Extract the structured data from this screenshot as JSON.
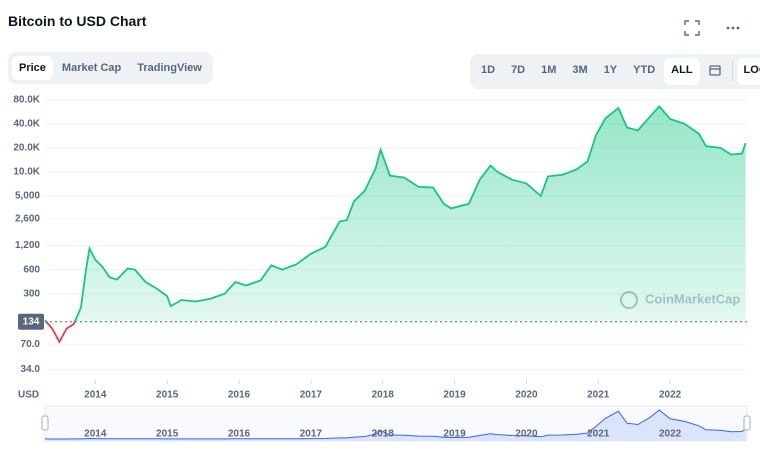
{
  "ui": {
    "tabs": [
      "Price",
      "Market Cap",
      "TradingView"
    ],
    "ranges": [
      "1D",
      "7D",
      "1M",
      "3M",
      "1Y",
      "YTD",
      "ALL"
    ],
    "log_button": "LOG",
    "watermark": "CoinMarketCap"
  },
  "chart_data": {
    "type": "line",
    "title": "Bitcoin to USD Chart",
    "log_scale": true,
    "grid": true,
    "axis_unit": "USD",
    "x": [
      2013.3,
      2013.4,
      2013.5,
      2013.6,
      2013.7,
      2013.8,
      2013.87,
      2013.92,
      2014.0,
      2014.1,
      2014.2,
      2014.3,
      2014.45,
      2014.55,
      2014.7,
      2014.85,
      2015.0,
      2015.05,
      2015.2,
      2015.4,
      2015.6,
      2015.8,
      2015.95,
      2016.1,
      2016.3,
      2016.45,
      2016.6,
      2016.8,
      2017.0,
      2017.2,
      2017.4,
      2017.5,
      2017.6,
      2017.75,
      2017.9,
      2017.97,
      2018.1,
      2018.3,
      2018.5,
      2018.7,
      2018.85,
      2018.95,
      2019.2,
      2019.35,
      2019.5,
      2019.6,
      2019.8,
      2020.0,
      2020.2,
      2020.3,
      2020.5,
      2020.7,
      2020.85,
      2020.97,
      2021.1,
      2021.28,
      2021.4,
      2021.55,
      2021.7,
      2021.85,
      2022.0,
      2022.2,
      2022.4,
      2022.5,
      2022.7,
      2022.85,
      2023.0,
      2023.05
    ],
    "series": [
      {
        "color": "#16c784",
        "values": [
          140,
          110,
          75,
          110,
          125,
          200,
          600,
          1100,
          800,
          650,
          480,
          450,
          620,
          600,
          420,
          350,
          280,
          210,
          250,
          240,
          260,
          300,
          420,
          380,
          440,
          680,
          600,
          700,
          950,
          1150,
          2400,
          2500,
          4300,
          5800,
          11000,
          19000,
          9000,
          8500,
          6500,
          6400,
          4000,
          3500,
          4000,
          8000,
          12000,
          10000,
          8000,
          7200,
          5000,
          8800,
          9200,
          10800,
          13500,
          29000,
          47000,
          63000,
          36000,
          33000,
          47000,
          66000,
          46000,
          40000,
          30000,
          21000,
          20000,
          16500,
          17000,
          23000
        ]
      }
    ],
    "color_below": "#ea3943",
    "reference_line": 134,
    "xlim": [
      2013.3,
      2023.07
    ],
    "xticks": [
      2014,
      2015,
      2016,
      2017,
      2018,
      2019,
      2020,
      2021,
      2022
    ],
    "ylim": [
      25,
      100000
    ],
    "yticks": [
      {
        "value": 34,
        "label": "34.0"
      },
      {
        "value": 70,
        "label": "70.0"
      },
      300,
      600,
      {
        "value": 1200,
        "label": "1,200"
      },
      {
        "value": 2600,
        "label": "2,600"
      },
      {
        "value": 5000,
        "label": "5,000"
      },
      {
        "value": 10000,
        "label": "10.0K"
      },
      {
        "value": 20000,
        "label": "20.0K"
      },
      {
        "value": 40000,
        "label": "40.0K"
      },
      {
        "value": 80000,
        "label": "80.0K"
      }
    ]
  }
}
